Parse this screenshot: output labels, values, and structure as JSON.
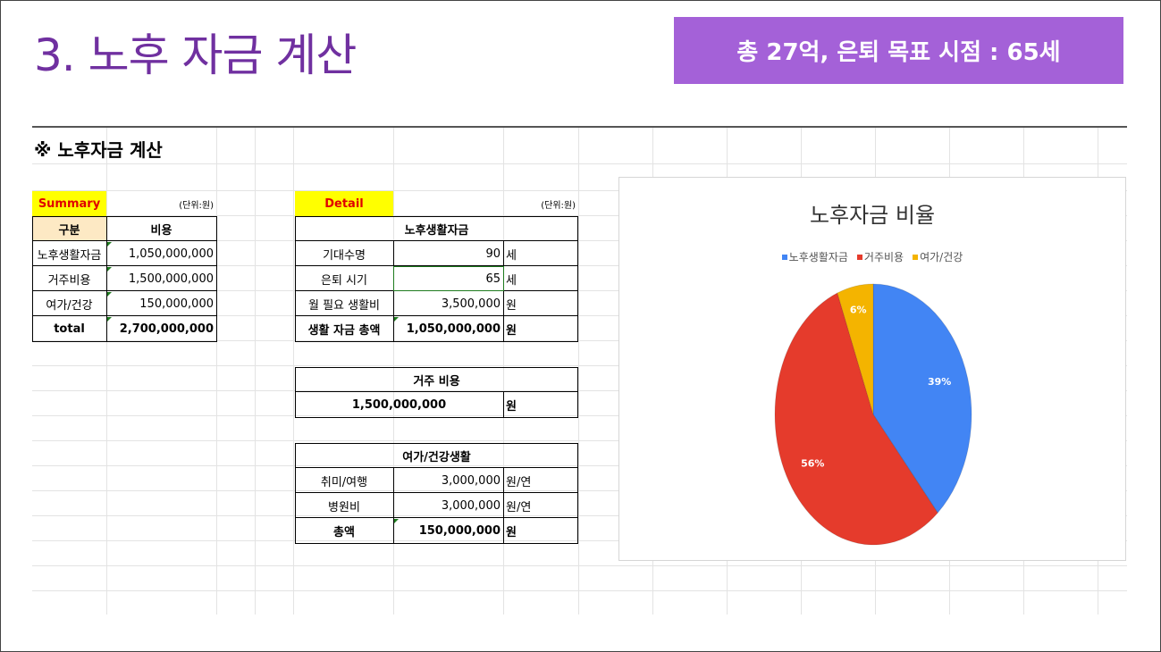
{
  "slide": {
    "title": "3. 노후 자금 계산",
    "badge": "총 27억, 은퇴 목표 시점  : 65세"
  },
  "section_title": "※ 노후자금 계산",
  "summary": {
    "label": "Summary",
    "unit": "(단위:원)",
    "headers": [
      "구분",
      "비용"
    ],
    "rows": [
      {
        "name": "노후생활자금",
        "value": "1,050,000,000"
      },
      {
        "name": "거주비용",
        "value": "1,500,000,000"
      },
      {
        "name": "여가/건강",
        "value": "150,000,000"
      }
    ],
    "total": {
      "name": "total",
      "value": "2,700,000,000"
    }
  },
  "detail": {
    "label": "Detail",
    "unit": "(단위:원)",
    "living": {
      "title": "노후생활자금",
      "rows": [
        {
          "name": "기대수명",
          "value": "90",
          "unit": "세"
        },
        {
          "name": "은퇴 시기",
          "value": "65",
          "unit": "세"
        },
        {
          "name": "월 필요 생활비",
          "value": "3,500,000",
          "unit": "원"
        }
      ],
      "total": {
        "name": "생활 자금 총액",
        "value": "1,050,000,000",
        "unit": "원"
      }
    },
    "housing": {
      "title": "거주 비용",
      "value": "1,500,000,000",
      "unit": "원"
    },
    "leisure": {
      "title": "여가/건강생활",
      "rows": [
        {
          "name": "취미/여행",
          "value": "3,000,000",
          "unit": "원/연"
        },
        {
          "name": "병원비",
          "value": "3,000,000",
          "unit": "원/연"
        }
      ],
      "total": {
        "name": "총액",
        "value": "150,000,000",
        "unit": "원"
      }
    }
  },
  "chart_data": {
    "type": "pie",
    "title": "노후자금 비율",
    "legend_position": "top",
    "categories": [
      "노후생활자금",
      "거주비용",
      "여가/건강"
    ],
    "values": [
      39,
      56,
      6
    ],
    "labels": [
      "39%",
      "56%",
      "6%"
    ],
    "colors": [
      "#4285f4",
      "#e53b2c",
      "#f4b400"
    ]
  }
}
